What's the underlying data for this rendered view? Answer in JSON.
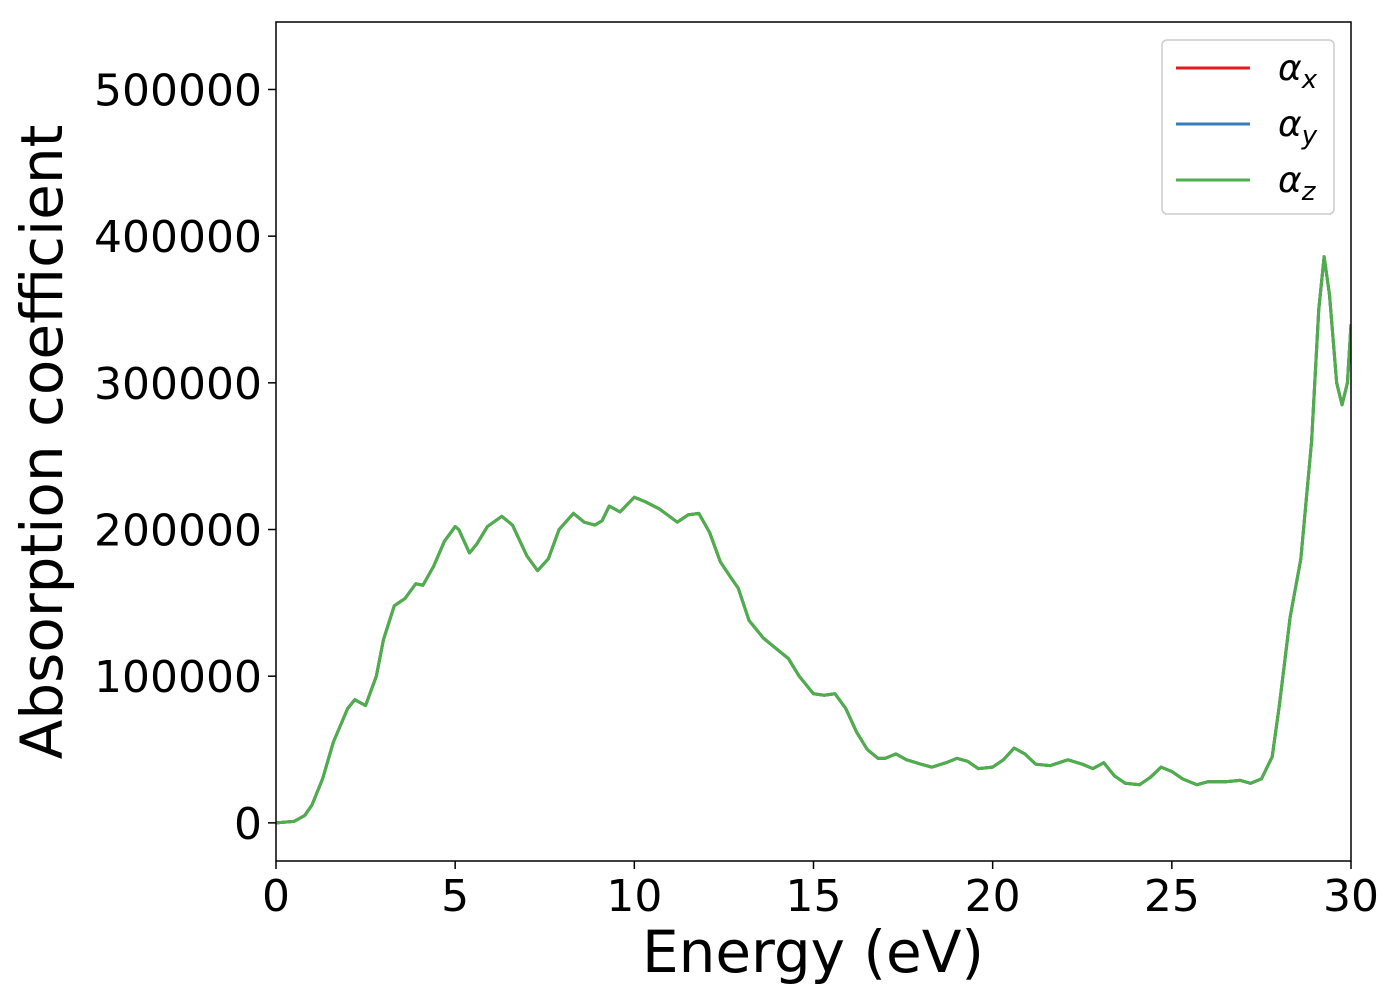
{
  "chart_data": {
    "type": "line",
    "xlabel": "Energy (eV)",
    "ylabel": "Absorption coefficient",
    "x": [
      0,
      0.5,
      0.8,
      1.0,
      1.3,
      1.6,
      2.0,
      2.2,
      2.5,
      2.8,
      3.0,
      3.3,
      3.6,
      3.9,
      4.1,
      4.4,
      4.7,
      5.0,
      5.1,
      5.4,
      5.6,
      5.9,
      6.3,
      6.6,
      7.0,
      7.3,
      7.6,
      7.9,
      8.3,
      8.6,
      8.9,
      9.1,
      9.3,
      9.6,
      10.0,
      10.3,
      10.7,
      11.2,
      11.5,
      11.8,
      12.1,
      12.4,
      12.7,
      12.9,
      13.2,
      13.6,
      14.0,
      14.3,
      14.6,
      15.0,
      15.3,
      15.6,
      15.9,
      16.2,
      16.5,
      16.8,
      17.0,
      17.3,
      17.6,
      18.0,
      18.3,
      18.7,
      19.0,
      19.3,
      19.6,
      20.0,
      20.3,
      20.6,
      20.9,
      21.2,
      21.6,
      22.1,
      22.5,
      22.8,
      23.1,
      23.4,
      23.7,
      24.1,
      24.4,
      24.7,
      25.0,
      25.3,
      25.7,
      26.0,
      26.5,
      26.9,
      27.2,
      27.5,
      27.8,
      28.0,
      28.3,
      28.6,
      28.9,
      29.1,
      29.25,
      29.4,
      29.6,
      29.75,
      29.9,
      30.0
    ],
    "series": [
      {
        "name": "αx",
        "color": "#e41a1c",
        "values": [
          0,
          1000,
          5000,
          12000,
          30000,
          55000,
          78000,
          84000,
          80000,
          100000,
          125000,
          148000,
          153000,
          163000,
          162000,
          175000,
          192000,
          202000,
          200000,
          184000,
          190000,
          202000,
          209000,
          203000,
          182000,
          172000,
          180000,
          200000,
          211000,
          205000,
          203000,
          206000,
          216000,
          212000,
          222000,
          219000,
          214000,
          205000,
          210000,
          211000,
          198000,
          178000,
          167000,
          160000,
          138000,
          126000,
          118000,
          112000,
          100000,
          88000,
          87000,
          88000,
          78000,
          62000,
          50000,
          44000,
          44000,
          47000,
          43000,
          40000,
          38000,
          41000,
          44000,
          42000,
          37000,
          38000,
          43000,
          51000,
          47000,
          40000,
          39000,
          43000,
          40000,
          37000,
          41000,
          32000,
          27000,
          26000,
          31000,
          38000,
          35000,
          30000,
          26000,
          28000,
          28000,
          29000,
          27000,
          30000,
          45000,
          80000,
          140000,
          180000,
          260000,
          350000,
          386000,
          360000,
          300000,
          285000,
          300000,
          340000
        ]
      },
      {
        "name": "αy",
        "color": "#377eb8",
        "values": [
          0,
          1000,
          5000,
          12000,
          30000,
          55000,
          78000,
          84000,
          80000,
          100000,
          125000,
          148000,
          153000,
          163000,
          162000,
          175000,
          192000,
          202000,
          200000,
          184000,
          190000,
          202000,
          209000,
          203000,
          182000,
          172000,
          180000,
          200000,
          211000,
          205000,
          203000,
          206000,
          216000,
          212000,
          222000,
          219000,
          214000,
          205000,
          210000,
          211000,
          198000,
          178000,
          167000,
          160000,
          138000,
          126000,
          118000,
          112000,
          100000,
          88000,
          87000,
          88000,
          78000,
          62000,
          50000,
          44000,
          44000,
          47000,
          43000,
          40000,
          38000,
          41000,
          44000,
          42000,
          37000,
          38000,
          43000,
          51000,
          47000,
          40000,
          39000,
          43000,
          40000,
          37000,
          41000,
          32000,
          27000,
          26000,
          31000,
          38000,
          35000,
          30000,
          26000,
          28000,
          28000,
          29000,
          27000,
          30000,
          45000,
          80000,
          140000,
          180000,
          260000,
          350000,
          386000,
          360000,
          300000,
          285000,
          300000,
          340000
        ]
      },
      {
        "name": "αz",
        "color": "#4daf4a",
        "values": [
          0,
          1000,
          5000,
          12000,
          30000,
          55000,
          78000,
          84000,
          80000,
          100000,
          125000,
          148000,
          153000,
          163000,
          162000,
          175000,
          192000,
          202000,
          200000,
          184000,
          190000,
          202000,
          209000,
          203000,
          182000,
          172000,
          180000,
          200000,
          211000,
          205000,
          203000,
          206000,
          216000,
          212000,
          222000,
          219000,
          214000,
          205000,
          210000,
          211000,
          198000,
          178000,
          167000,
          160000,
          138000,
          126000,
          118000,
          112000,
          100000,
          88000,
          87000,
          88000,
          78000,
          62000,
          50000,
          44000,
          44000,
          47000,
          43000,
          40000,
          38000,
          41000,
          44000,
          42000,
          37000,
          38000,
          43000,
          51000,
          47000,
          40000,
          39000,
          43000,
          40000,
          37000,
          41000,
          32000,
          27000,
          26000,
          31000,
          38000,
          35000,
          30000,
          26000,
          28000,
          28000,
          29000,
          27000,
          30000,
          45000,
          80000,
          140000,
          180000,
          260000,
          350000,
          386000,
          360000,
          300000,
          285000,
          300000,
          340000
        ]
      }
    ],
    "xlim": [
      0,
      30
    ],
    "xticks": [
      0,
      5,
      10,
      15,
      20,
      25,
      30
    ],
    "ylim": [
      -26000,
      546000
    ],
    "yticks": [
      0,
      100000,
      200000,
      300000,
      400000,
      500000
    ],
    "grid": false,
    "legend": "upper right"
  }
}
